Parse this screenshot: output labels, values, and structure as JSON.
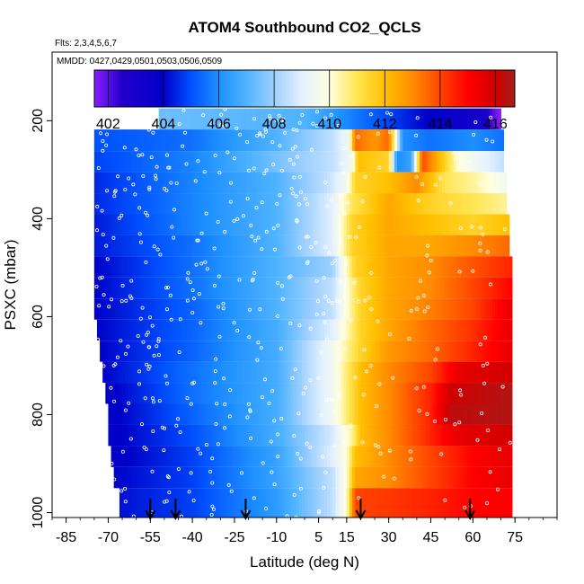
{
  "chart_data": {
    "type": "heatmap",
    "title": "ATOM4 Southbound CO2_QCLS",
    "flights_note": "Flts: 2,3,4,5,6,7",
    "dates_note": "MMDD: 0427,0429,0501,0503,0506,0509",
    "xlabel": "Latitude (deg N)",
    "ylabel": "PSXC (mbar)",
    "xlim": [
      -90,
      90
    ],
    "ylim": [
      1010,
      60
    ],
    "y_reversed": true,
    "x_tick_labels": [
      "-85",
      "-70",
      "-55",
      "-40",
      "-25",
      "-10",
      "5",
      "15",
      "30",
      "45",
      "60",
      "75"
    ],
    "x_ticks": [
      -85,
      -70,
      -55,
      -40,
      -25,
      -10,
      5,
      15,
      30,
      45,
      60,
      75
    ],
    "y_ticks": [
      200,
      400,
      600,
      800,
      1000
    ],
    "y_tick_labels": [
      "200",
      "400",
      "600",
      "800",
      "1000"
    ],
    "colorbar": {
      "min": 401.5,
      "max": 416.7,
      "tick_values": [
        402,
        404,
        406,
        408,
        410,
        412,
        414,
        416
      ],
      "tick_labels": [
        "402",
        "404",
        "406",
        "408",
        "410",
        "412",
        "414",
        "416"
      ],
      "stops": [
        {
          "value": 401.5,
          "color": "#8b1cff"
        },
        {
          "value": 402.5,
          "color": "#2200cc"
        },
        {
          "value": 404.0,
          "color": "#0000c8"
        },
        {
          "value": 405.0,
          "color": "#0050ff"
        },
        {
          "value": 406.0,
          "color": "#1e90ff"
        },
        {
          "value": 407.0,
          "color": "#4fb3ff"
        },
        {
          "value": 408.0,
          "color": "#9ed0ff"
        },
        {
          "value": 409.0,
          "color": "#e4f1ff"
        },
        {
          "value": 410.0,
          "color": "#ffffe0"
        },
        {
          "value": 411.0,
          "color": "#ffe552"
        },
        {
          "value": 412.0,
          "color": "#ffc000"
        },
        {
          "value": 413.0,
          "color": "#ff8c00"
        },
        {
          "value": 414.0,
          "color": "#ff4500"
        },
        {
          "value": 415.0,
          "color": "#ff0000"
        },
        {
          "value": 416.0,
          "color": "#d00000"
        },
        {
          "value": 416.7,
          "color": "#a61c1c"
        }
      ]
    },
    "grid": false,
    "arrow_latitudes": [
      -55,
      -46,
      -21,
      20,
      59
    ],
    "pressure_bands": [
      {
        "p_top": 175,
        "p_bot": 218,
        "lat_start": -52,
        "lat_end": 70,
        "profile": [
          [
            -52,
            407.4
          ],
          [
            -30,
            407.2
          ],
          [
            0,
            407.0
          ],
          [
            20,
            405.5
          ],
          [
            40,
            404.2
          ],
          [
            55,
            403.5
          ],
          [
            64,
            403.0
          ],
          [
            68,
            401.8
          ],
          [
            70,
            401.5
          ]
        ]
      },
      {
        "p_top": 218,
        "p_bot": 262,
        "lat_start": -75,
        "lat_end": 71,
        "profile": [
          [
            -75,
            405.0
          ],
          [
            -40,
            405.5
          ],
          [
            -10,
            407.0
          ],
          [
            10,
            408.5
          ],
          [
            16,
            409.5
          ],
          [
            18,
            413.5
          ],
          [
            25,
            412.8
          ],
          [
            30,
            413.5
          ],
          [
            35,
            406.0
          ],
          [
            45,
            405.5
          ],
          [
            60,
            406.0
          ],
          [
            71,
            405.5
          ]
        ]
      },
      {
        "p_top": 262,
        "p_bot": 305,
        "lat_start": -75,
        "lat_end": 71,
        "profile": [
          [
            -75,
            404.8
          ],
          [
            -40,
            405.8
          ],
          [
            -10,
            407.5
          ],
          [
            10,
            408.5
          ],
          [
            17,
            409.5
          ],
          [
            19,
            412.0
          ],
          [
            30,
            411.5
          ],
          [
            33,
            406.0
          ],
          [
            38,
            406.5
          ],
          [
            42,
            414.0
          ],
          [
            55,
            410.0
          ],
          [
            71,
            408.5
          ]
        ]
      },
      {
        "p_top": 305,
        "p_bot": 348,
        "lat_start": -75,
        "lat_end": 72,
        "profile": [
          [
            -75,
            404.5
          ],
          [
            -40,
            405.8
          ],
          [
            -10,
            407.0
          ],
          [
            8,
            408.5
          ],
          [
            15,
            409.5
          ],
          [
            18,
            411.5
          ],
          [
            30,
            412.0
          ],
          [
            40,
            413.0
          ],
          [
            50,
            411.0
          ],
          [
            60,
            410.5
          ],
          [
            72,
            409.5
          ]
        ]
      },
      {
        "p_top": 348,
        "p_bot": 391,
        "lat_start": -75,
        "lat_end": 72,
        "profile": [
          [
            -75,
            404.5
          ],
          [
            -40,
            405.8
          ],
          [
            -10,
            407.0
          ],
          [
            10,
            409.0
          ],
          [
            17,
            411.0
          ],
          [
            30,
            412.5
          ],
          [
            45,
            411.5
          ],
          [
            60,
            411.0
          ],
          [
            72,
            410.5
          ]
        ]
      },
      {
        "p_top": 391,
        "p_bot": 434,
        "lat_start": -75,
        "lat_end": 73,
        "profile": [
          [
            -75,
            404.3
          ],
          [
            -40,
            405.8
          ],
          [
            -10,
            407.0
          ],
          [
            10,
            409.0
          ],
          [
            17,
            411.5
          ],
          [
            30,
            412.5
          ],
          [
            45,
            412.0
          ],
          [
            60,
            411.5
          ],
          [
            73,
            412.0
          ]
        ]
      },
      {
        "p_top": 434,
        "p_bot": 477,
        "lat_start": -75,
        "lat_end": 73,
        "profile": [
          [
            -75,
            404.3
          ],
          [
            -40,
            405.5
          ],
          [
            -10,
            407.0
          ],
          [
            10,
            409.0
          ],
          [
            17,
            411.5
          ],
          [
            30,
            412.5
          ],
          [
            45,
            412.5
          ],
          [
            60,
            413.0
          ],
          [
            73,
            413.5
          ]
        ]
      },
      {
        "p_top": 477,
        "p_bot": 520,
        "lat_start": -75,
        "lat_end": 74,
        "profile": [
          [
            -75,
            404.0
          ],
          [
            -40,
            405.5
          ],
          [
            -10,
            407.0
          ],
          [
            10,
            408.0
          ],
          [
            18,
            411.5
          ],
          [
            30,
            412.5
          ],
          [
            45,
            413.0
          ],
          [
            60,
            413.8
          ],
          [
            74,
            414.5
          ]
        ]
      },
      {
        "p_top": 520,
        "p_bot": 563,
        "lat_start": -75,
        "lat_end": 74,
        "profile": [
          [
            -75,
            404.0
          ],
          [
            -40,
            405.5
          ],
          [
            -10,
            407.0
          ],
          [
            10,
            408.5
          ],
          [
            20,
            411.5
          ],
          [
            30,
            412.5
          ],
          [
            45,
            413.0
          ],
          [
            60,
            414.0
          ],
          [
            74,
            415.0
          ]
        ]
      },
      {
        "p_top": 563,
        "p_bot": 606,
        "lat_start": -75,
        "lat_end": 74,
        "profile": [
          [
            -75,
            404.0
          ],
          [
            -40,
            405.3
          ],
          [
            -10,
            407.0
          ],
          [
            10,
            408.5
          ],
          [
            20,
            411.5
          ],
          [
            30,
            412.5
          ],
          [
            45,
            413.2
          ],
          [
            60,
            414.0
          ],
          [
            74,
            415.5
          ]
        ]
      },
      {
        "p_top": 606,
        "p_bot": 649,
        "lat_start": -74,
        "lat_end": 74,
        "profile": [
          [
            -74,
            404.0
          ],
          [
            -40,
            405.3
          ],
          [
            -10,
            406.8
          ],
          [
            10,
            409.0
          ],
          [
            20,
            411.5
          ],
          [
            30,
            412.5
          ],
          [
            45,
            413.5
          ],
          [
            60,
            414.3
          ],
          [
            74,
            415.5
          ]
        ]
      },
      {
        "p_top": 649,
        "p_bot": 692,
        "lat_start": -73,
        "lat_end": 74,
        "profile": [
          [
            -73,
            404.0
          ],
          [
            -40,
            405.3
          ],
          [
            -10,
            406.8
          ],
          [
            10,
            409.5
          ],
          [
            20,
            411.5
          ],
          [
            30,
            412.8
          ],
          [
            45,
            413.5
          ],
          [
            60,
            414.5
          ],
          [
            74,
            415.5
          ]
        ]
      },
      {
        "p_top": 692,
        "p_bot": 735,
        "lat_start": -72,
        "lat_end": 74,
        "profile": [
          [
            -72,
            404.0
          ],
          [
            -40,
            405.5
          ],
          [
            -10,
            406.8
          ],
          [
            10,
            409.5
          ],
          [
            20,
            412.0
          ],
          [
            30,
            413.0
          ],
          [
            45,
            414.0
          ],
          [
            55,
            415.5
          ],
          [
            74,
            416.0
          ]
        ]
      },
      {
        "p_top": 735,
        "p_bot": 778,
        "lat_start": -71,
        "lat_end": 74,
        "profile": [
          [
            -71,
            403.8
          ],
          [
            -40,
            405.5
          ],
          [
            -10,
            406.8
          ],
          [
            10,
            409.5
          ],
          [
            20,
            412.0
          ],
          [
            30,
            413.0
          ],
          [
            45,
            414.5
          ],
          [
            52,
            416.0
          ],
          [
            74,
            416.5
          ]
        ]
      },
      {
        "p_top": 778,
        "p_bot": 821,
        "lat_start": -70,
        "lat_end": 74,
        "profile": [
          [
            -70,
            403.8
          ],
          [
            -40,
            405.3
          ],
          [
            -10,
            406.8
          ],
          [
            10,
            409.5
          ],
          [
            20,
            412.0
          ],
          [
            30,
            413.0
          ],
          [
            45,
            414.5
          ],
          [
            52,
            416.3
          ],
          [
            74,
            416.5
          ]
        ]
      },
      {
        "p_top": 821,
        "p_bot": 864,
        "lat_start": -70,
        "lat_end": 74,
        "profile": [
          [
            -70,
            403.8
          ],
          [
            -40,
            405.0
          ],
          [
            -10,
            406.8
          ],
          [
            10,
            408.8
          ],
          [
            17,
            410.5
          ],
          [
            20,
            412.0
          ],
          [
            30,
            413.0
          ],
          [
            45,
            414.5
          ],
          [
            55,
            415.5
          ],
          [
            74,
            416.0
          ]
        ]
      },
      {
        "p_top": 864,
        "p_bot": 907,
        "lat_start": -69,
        "lat_end": 74,
        "profile": [
          [
            -69,
            403.8
          ],
          [
            -40,
            404.8
          ],
          [
            -10,
            406.5
          ],
          [
            10,
            409.0
          ],
          [
            15,
            410.0
          ],
          [
            18,
            412.0
          ],
          [
            30,
            413.0
          ],
          [
            45,
            414.0
          ],
          [
            60,
            415.0
          ],
          [
            74,
            415.5
          ]
        ]
      },
      {
        "p_top": 907,
        "p_bot": 950,
        "lat_start": -68,
        "lat_end": 74,
        "profile": [
          [
            -68,
            404.0
          ],
          [
            -40,
            404.8
          ],
          [
            -10,
            406.5
          ],
          [
            10,
            408.5
          ],
          [
            15,
            410.0
          ],
          [
            18,
            412.5
          ],
          [
            30,
            413.0
          ],
          [
            45,
            414.0
          ],
          [
            60,
            415.0
          ],
          [
            74,
            415.5
          ]
        ]
      },
      {
        "p_top": 950,
        "p_bot": 1010,
        "lat_start": -66,
        "lat_end": 74,
        "profile": [
          [
            -66,
            404.2
          ],
          [
            -40,
            404.8
          ],
          [
            -10,
            406.3
          ],
          [
            10,
            408.5
          ],
          [
            15,
            410.0
          ],
          [
            18,
            414.0
          ],
          [
            30,
            414.2
          ],
          [
            45,
            414.5
          ],
          [
            60,
            415.0
          ],
          [
            74,
            415.0
          ]
        ]
      }
    ]
  }
}
